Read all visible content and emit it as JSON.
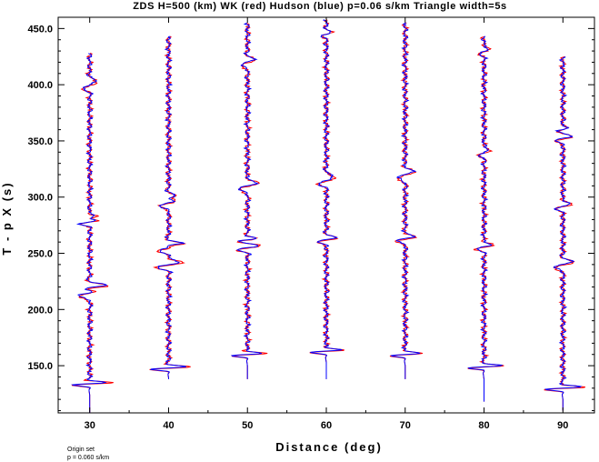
{
  "chart_data": {
    "type": "line",
    "title": "ZDS H=500 (km) WK (red) Hudson (blue) p=0.06 s/km Triangle width=5s",
    "xlabel": "Distance (deg)",
    "ylabel": "T - p X  (s)",
    "xlim": [
      26,
      94
    ],
    "ylim": [
      108,
      460
    ],
    "x_ticks": [
      30,
      40,
      50,
      60,
      70,
      80,
      90
    ],
    "y_ticks": [
      150.0,
      200.0,
      250.0,
      300.0,
      350.0,
      400.0,
      450.0
    ],
    "y_tick_labels": [
      "150.0",
      "200.0",
      "250.0",
      "300.0",
      "350.0",
      "400.0",
      "450.0"
    ],
    "trace_scale_deg": 3.5,
    "grid": false,
    "series": [
      {
        "name": "WK",
        "color": "#ff0000"
      },
      {
        "name": "Hudson",
        "color": "#0000ff"
      }
    ],
    "traces": [
      {
        "distance": 30,
        "start": 108,
        "end": 428,
        "first_arrival": 132,
        "wiggles": [
          [
            134,
            1.0,
            2.5
          ],
          [
            215,
            0.6,
            6
          ],
          [
            220,
            0.9,
            4
          ],
          [
            278,
            0.5,
            4
          ],
          [
            282,
            0.4,
            3
          ],
          [
            400,
            0.35,
            6
          ]
        ]
      },
      {
        "distance": 40,
        "start": 138,
        "end": 443,
        "first_arrival": 147,
        "wiggles": [
          [
            148,
            1.0,
            2.5
          ],
          [
            240,
            0.6,
            5
          ],
          [
            255,
            0.55,
            5
          ],
          [
            258,
            0.5,
            3
          ],
          [
            295,
            0.45,
            6
          ],
          [
            300,
            0.3,
            4
          ]
        ]
      },
      {
        "distance": 50,
        "start": 138,
        "end": 455,
        "first_arrival": 158,
        "wiggles": [
          [
            160,
            0.9,
            2.5
          ],
          [
            255,
            0.5,
            4
          ],
          [
            262,
            0.4,
            3
          ],
          [
            310,
            0.45,
            6
          ],
          [
            420,
            0.35,
            5
          ]
        ]
      },
      {
        "distance": 60,
        "start": 138,
        "end": 458,
        "first_arrival": 161,
        "wiggles": [
          [
            163,
            0.9,
            2.5
          ],
          [
            262,
            0.5,
            4
          ],
          [
            315,
            0.4,
            6
          ],
          [
            445,
            0.2,
            4
          ]
        ]
      },
      {
        "distance": 70,
        "start": 138,
        "end": 455,
        "first_arrival": 158,
        "wiggles": [
          [
            160,
            0.8,
            2.5
          ],
          [
            263,
            0.55,
            4
          ],
          [
            320,
            0.4,
            6
          ]
        ]
      },
      {
        "distance": 80,
        "start": 118,
        "end": 443,
        "first_arrival": 146,
        "wiggles": [
          [
            149,
            0.9,
            2.5
          ],
          [
            256,
            0.4,
            4
          ],
          [
            340,
            0.25,
            5
          ],
          [
            430,
            0.2,
            5
          ]
        ]
      },
      {
        "distance": 90,
        "start": 110,
        "end": 425,
        "first_arrival": 128,
        "wiggles": [
          [
            130,
            1.0,
            2.5
          ],
          [
            240,
            0.5,
            5
          ],
          [
            292,
            0.35,
            5
          ],
          [
            352,
            0.45,
            4
          ],
          [
            360,
            0.2,
            3
          ]
        ]
      }
    ]
  },
  "footnote": {
    "line1": "Origin set",
    "line2": "p = 0.060 s/km"
  }
}
